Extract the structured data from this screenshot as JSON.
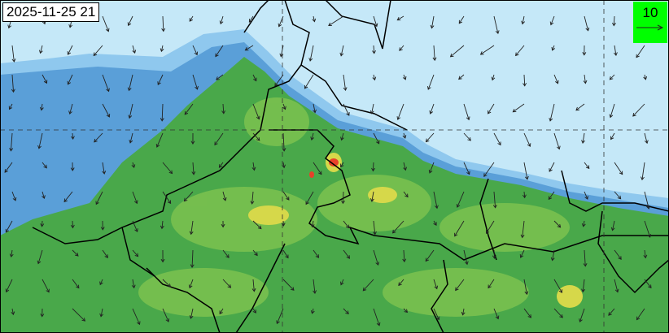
{
  "timestamp": "2025-11-25 21",
  "legend": {
    "reference_vector_value": "10",
    "background_color": "#00ff00"
  },
  "colors": {
    "ocean_background": "#c5e8f8",
    "light_blue": "#8fc8ee",
    "mid_blue": "#5a9fd8",
    "green": "#49a84a",
    "light_green": "#7cc24f",
    "yellow": "#d6d84a",
    "red": "#e8402a"
  }
}
